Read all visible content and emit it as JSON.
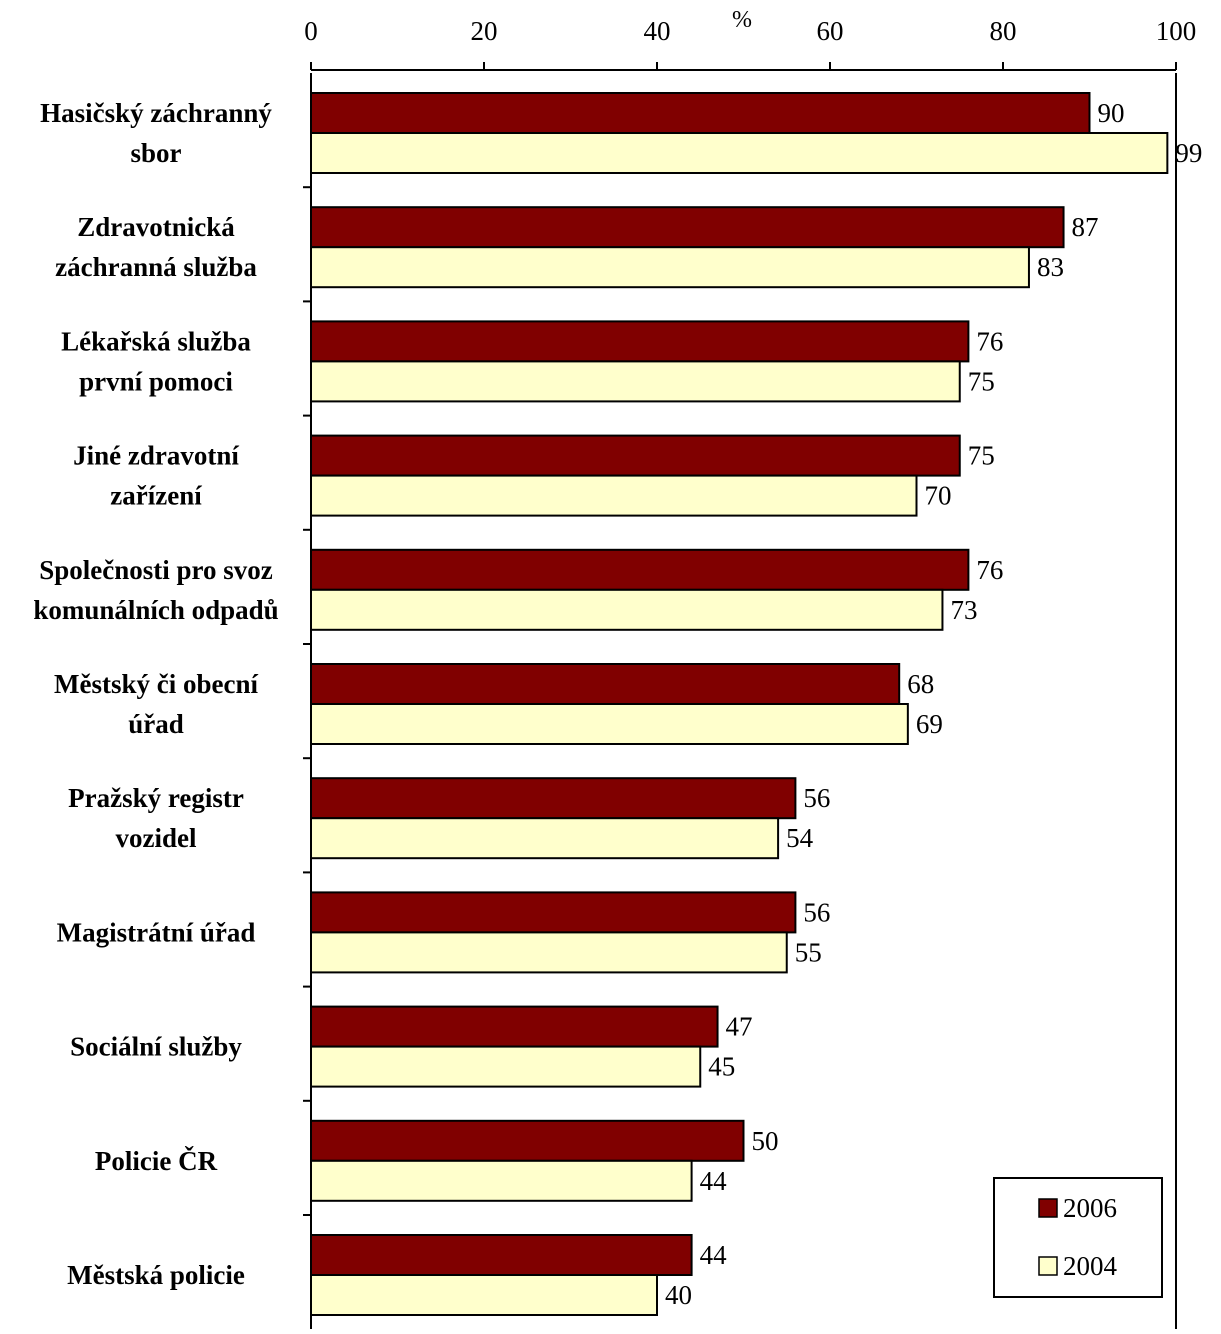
{
  "chart_data": {
    "type": "bar",
    "orientation": "horizontal",
    "axis_unit": "%",
    "xlim": [
      0,
      100
    ],
    "x_ticks": [
      0,
      20,
      40,
      60,
      80,
      100
    ],
    "x_axis_position": "top",
    "grid": false,
    "legend_position": "bottom-right",
    "categories": [
      [
        "Hasičský záchranný",
        "sbor"
      ],
      [
        "Zdravotnická",
        "záchranná služba"
      ],
      [
        "Lékařská služba",
        "první pomoci"
      ],
      [
        "Jiné zdravotní",
        "zařízení"
      ],
      [
        "Společnosti pro svoz",
        "komunálních odpadů"
      ],
      [
        "Městský či obecní",
        "úřad"
      ],
      [
        "Pražský registr",
        "vozidel"
      ],
      [
        "Magistrátní úřad"
      ],
      [
        "Sociální služby"
      ],
      [
        "Policie ČR"
      ],
      [
        "Městská policie"
      ]
    ],
    "series": [
      {
        "name": "2006",
        "color": "#800000",
        "values": [
          90,
          87,
          76,
          75,
          76,
          68,
          56,
          56,
          47,
          50,
          44
        ]
      },
      {
        "name": "2004",
        "color": "#ffffcc",
        "values": [
          99,
          83,
          75,
          70,
          73,
          69,
          54,
          55,
          45,
          44,
          40
        ]
      }
    ]
  }
}
